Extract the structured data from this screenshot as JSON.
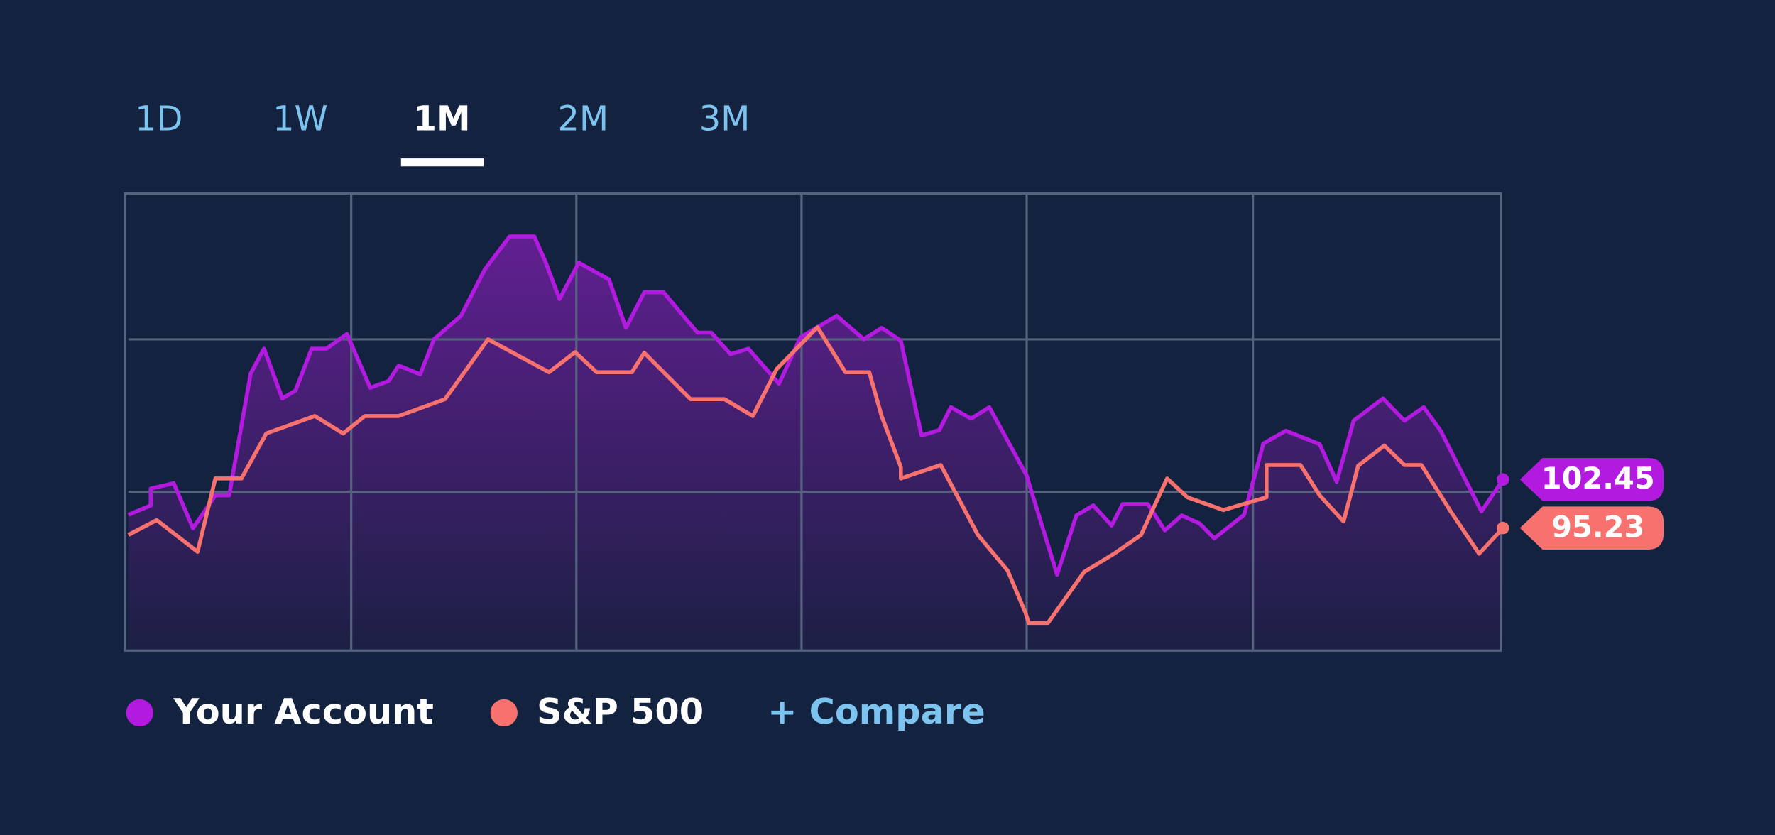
{
  "chart_data": {
    "type": "line",
    "tabs": [
      "1D",
      "1W",
      "1M",
      "2M",
      "3M"
    ],
    "active_tab": 2,
    "compare_label": "+ Compare",
    "xlim": [
      0,
      30
    ],
    "ylim": [
      77,
      145
    ],
    "yticks": [
      100.6,
      123.3
    ],
    "grid": true,
    "series": [
      {
        "name": "Your Account",
        "color": "#b31ae0",
        "fill": true,
        "x": [
          0,
          0.49,
          0.49,
          0.99,
          1.41,
          1.9,
          2.2,
          2.67,
          2.96,
          3.36,
          3.65,
          4.0,
          4.32,
          4.77,
          5.28,
          5.68,
          5.9,
          6.37,
          6.67,
          7.26,
          7.78,
          8.32,
          8.86,
          9.11,
          9.41,
          9.83,
          10.49,
          10.86,
          11.26,
          11.68,
          12.42,
          12.72,
          13.14,
          13.53,
          14.2,
          14.67,
          15.46,
          16.05,
          16.44,
          16.86,
          17.31,
          17.7,
          17.95,
          18.39,
          18.79,
          19.6,
          20.27,
          20.69,
          21.06,
          21.46,
          21.7,
          22.25,
          22.62,
          22.99,
          23.38,
          23.7,
          24.35,
          24.77,
          25.26,
          26.0,
          26.37,
          26.74,
          27.38,
          27.85,
          28.27,
          28.64,
          29.53,
          30
        ],
        "values": [
          97.2,
          98.6,
          101.1,
          101.9,
          95.2,
          100.1,
          100.1,
          118.2,
          121.9,
          114.5,
          115.7,
          121.9,
          121.9,
          124.1,
          116.1,
          117.1,
          119.4,
          118.1,
          123.3,
          126.8,
          133.7,
          138.6,
          138.6,
          134.7,
          129.3,
          134.7,
          132.2,
          125.0,
          130.3,
          130.3,
          124.3,
          124.3,
          121.1,
          121.9,
          116.7,
          123.6,
          126.8,
          123.3,
          125.0,
          123.1,
          109.0,
          109.8,
          113.2,
          111.5,
          113.2,
          103.1,
          88.3,
          97.1,
          98.6,
          95.6,
          98.8,
          98.8,
          94.9,
          97.1,
          95.9,
          93.7,
          97.2,
          107.8,
          109.7,
          107.7,
          102.1,
          111.2,
          114.5,
          111.2,
          113.2,
          109.7,
          97.7,
          102.45
        ]
      },
      {
        "name": "S&P 500",
        "color": "#f7716e",
        "fill": false,
        "x": [
          0,
          0.62,
          1.51,
          1.9,
          2.47,
          3.01,
          4.07,
          4.69,
          5.16,
          5.9,
          6.91,
          7.85,
          9.18,
          9.75,
          10.22,
          10.99,
          11.26,
          12.27,
          13.01,
          13.63,
          14.15,
          15.04,
          15.65,
          16.17,
          16.44,
          16.86,
          16.86,
          17.73,
          18.54,
          19.19,
          19.58,
          19.65,
          20.07,
          20.86,
          21.51,
          22.1,
          22.67,
          23.11,
          23.9,
          24.84,
          24.84,
          25.58,
          26.0,
          26.52,
          26.84,
          27.41,
          27.85,
          28.22,
          28.86,
          29.48,
          30
        ],
        "values": [
          94.2,
          96.4,
          91.7,
          102.6,
          102.6,
          109.3,
          111.9,
          109.3,
          111.9,
          111.9,
          114.4,
          123.3,
          118.4,
          121.4,
          118.4,
          118.4,
          121.3,
          114.4,
          114.4,
          111.9,
          118.9,
          125.1,
          118.4,
          118.4,
          111.9,
          104.3,
          102.6,
          104.6,
          94.2,
          88.9,
          82.6,
          81.1,
          81.1,
          88.7,
          91.4,
          94.2,
          102.6,
          99.8,
          97.9,
          99.8,
          104.6,
          104.6,
          100.1,
          96.2,
          104.5,
          107.5,
          104.6,
          104.6,
          97.7,
          91.4,
          95.23
        ]
      }
    ]
  }
}
